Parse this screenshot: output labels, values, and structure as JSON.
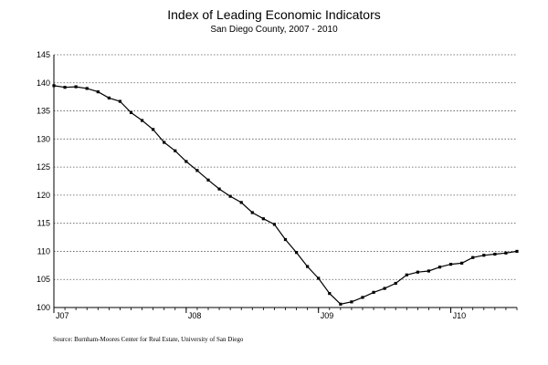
{
  "chart_data": {
    "type": "line",
    "title": "Index of Leading Economic Indicators",
    "subtitle": "San Diego County, 2007 - 2010",
    "source": "Source:  Burnham-Moores Center for Real Estate, University of San Diego",
    "ylim": [
      100,
      145
    ],
    "yticks": [
      100,
      105,
      110,
      115,
      120,
      125,
      130,
      135,
      140,
      145
    ],
    "xlim": [
      0,
      42
    ],
    "xticks": [
      {
        "label": "J07",
        "x": 0
      },
      {
        "label": "J08",
        "x": 12
      },
      {
        "label": "J09",
        "x": 24
      },
      {
        "label": "J10",
        "x": 36
      }
    ],
    "grid": "horizontal-dotted",
    "series": [
      {
        "values": [
          139.5,
          139.2,
          139.3,
          139.0,
          138.4,
          137.3,
          136.7,
          134.7,
          133.3,
          131.7,
          129.4,
          127.9,
          126.0,
          124.4,
          122.7,
          121.1,
          119.8,
          118.7,
          116.9,
          115.8,
          114.8,
          112.1,
          109.8,
          107.3,
          105.2,
          102.5,
          100.6,
          101.0,
          101.8,
          102.7,
          103.4,
          104.3,
          105.8,
          106.3,
          106.5,
          107.2,
          107.7,
          107.9,
          108.9,
          109.3,
          109.5,
          109.7,
          110.0
        ]
      }
    ]
  }
}
